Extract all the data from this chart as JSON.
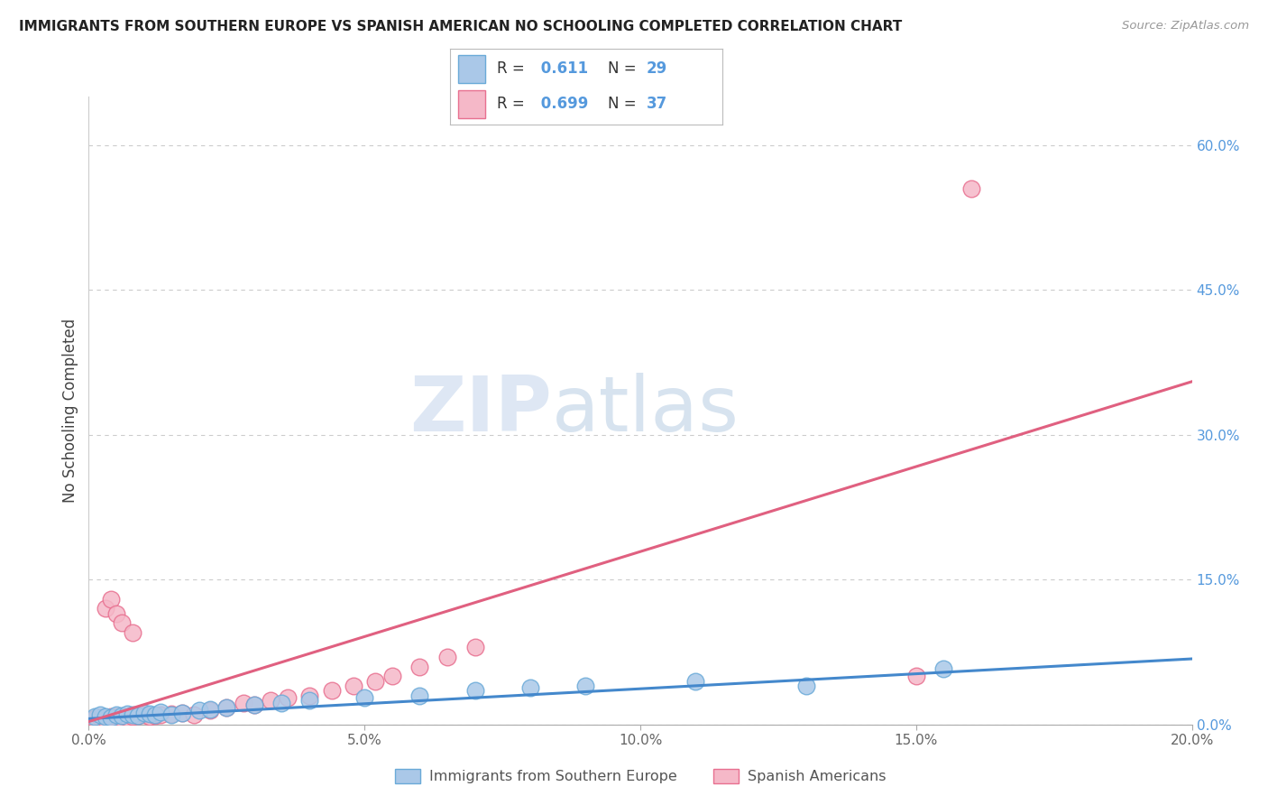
{
  "title": "IMMIGRANTS FROM SOUTHERN EUROPE VS SPANISH AMERICAN NO SCHOOLING COMPLETED CORRELATION CHART",
  "source": "Source: ZipAtlas.com",
  "ylabel": "No Schooling Completed",
  "xlim": [
    0.0,
    0.2
  ],
  "ylim": [
    0.0,
    0.65
  ],
  "x_ticks": [
    0.0,
    0.05,
    0.1,
    0.15,
    0.2
  ],
  "x_tick_labels": [
    "0.0%",
    "5.0%",
    "10.0%",
    "15.0%",
    "20.0%"
  ],
  "y_ticks_right": [
    0.0,
    0.15,
    0.3,
    0.45,
    0.6
  ],
  "y_tick_labels_right": [
    "0.0%",
    "15.0%",
    "30.0%",
    "45.0%",
    "60.0%"
  ],
  "r_blue": 0.611,
  "n_blue": 29,
  "r_pink": 0.699,
  "n_pink": 37,
  "blue_fill": "#aac8e8",
  "pink_fill": "#f5b8c8",
  "blue_edge": "#6aaad8",
  "pink_edge": "#e87090",
  "line_blue": "#4488cc",
  "line_pink": "#e06080",
  "legend_blue_label": "Immigrants from Southern Europe",
  "legend_pink_label": "Spanish Americans",
  "blue_scatter_x": [
    0.001,
    0.002,
    0.003,
    0.004,
    0.005,
    0.006,
    0.007,
    0.008,
    0.009,
    0.01,
    0.011,
    0.012,
    0.013,
    0.015,
    0.017,
    0.02,
    0.022,
    0.025,
    0.03,
    0.035,
    0.04,
    0.05,
    0.06,
    0.07,
    0.08,
    0.09,
    0.11,
    0.13,
    0.155
  ],
  "blue_scatter_y": [
    0.008,
    0.01,
    0.008,
    0.007,
    0.01,
    0.009,
    0.011,
    0.01,
    0.009,
    0.012,
    0.011,
    0.01,
    0.013,
    0.01,
    0.012,
    0.015,
    0.016,
    0.018,
    0.02,
    0.022,
    0.025,
    0.028,
    0.03,
    0.035,
    0.038,
    0.04,
    0.045,
    0.04,
    0.058
  ],
  "pink_scatter_x": [
    0.001,
    0.002,
    0.003,
    0.004,
    0.005,
    0.006,
    0.007,
    0.008,
    0.009,
    0.01,
    0.011,
    0.012,
    0.013,
    0.015,
    0.017,
    0.019,
    0.022,
    0.025,
    0.028,
    0.03,
    0.033,
    0.036,
    0.04,
    0.044,
    0.048,
    0.052,
    0.055,
    0.06,
    0.065,
    0.07,
    0.003,
    0.004,
    0.005,
    0.006,
    0.008,
    0.16,
    0.15
  ],
  "pink_scatter_y": [
    0.006,
    0.007,
    0.005,
    0.008,
    0.008,
    0.006,
    0.007,
    0.008,
    0.009,
    0.01,
    0.008,
    0.009,
    0.01,
    0.011,
    0.012,
    0.01,
    0.015,
    0.018,
    0.022,
    0.02,
    0.025,
    0.028,
    0.03,
    0.035,
    0.04,
    0.045,
    0.05,
    0.06,
    0.07,
    0.08,
    0.12,
    0.13,
    0.115,
    0.105,
    0.095,
    0.555,
    0.05
  ],
  "blue_line_x0": 0.0,
  "blue_line_y0": 0.006,
  "blue_line_x1": 0.2,
  "blue_line_y1": 0.068,
  "pink_line_x0": 0.0,
  "pink_line_y0": 0.003,
  "pink_line_x1": 0.2,
  "pink_line_y1": 0.355,
  "watermark_zip": "ZIP",
  "watermark_atlas": "atlas",
  "background_color": "#ffffff",
  "grid_color": "#cccccc"
}
